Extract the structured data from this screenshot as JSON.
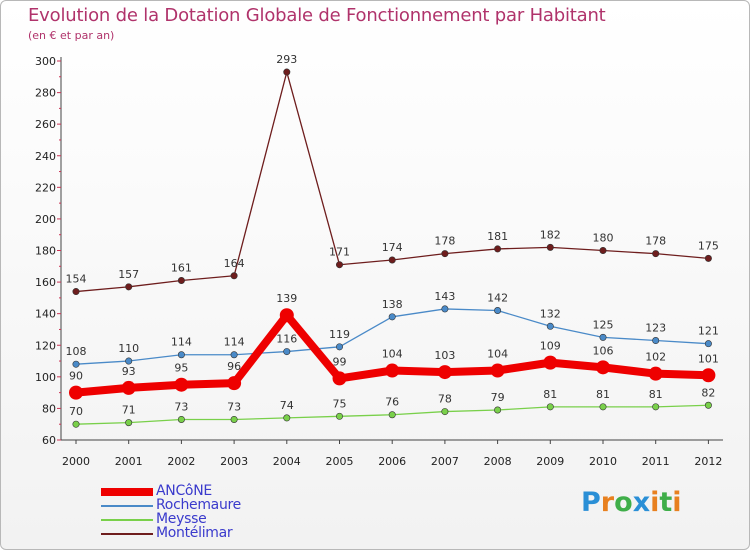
{
  "title": "Evolution de la Dotation Globale de Fonctionnement par Habitant",
  "subtitle": "(en € et par an)",
  "logo": {
    "text": "Proxiti",
    "letters": [
      "P",
      "r",
      "o",
      "x",
      "i",
      "t",
      "i"
    ],
    "colors": [
      "#2a8fd6",
      "#e8801f",
      "#3fae49",
      "#2a8fd6",
      "#e8801f",
      "#3fae49",
      "#e8801f"
    ]
  },
  "chart_data": {
    "type": "line",
    "title": "Evolution de la Dotation Globale de Fonctionnement par Habitant",
    "subtitle": "(en € et par an)",
    "xlabel": "",
    "ylabel": "",
    "ylim": [
      60,
      300
    ],
    "yticks": [
      60,
      80,
      100,
      120,
      140,
      160,
      180,
      200,
      220,
      240,
      260,
      280,
      300
    ],
    "x": [
      "2000",
      "2001",
      "2002",
      "2003",
      "2004",
      "2005",
      "2006",
      "2007",
      "2008",
      "2009",
      "2010",
      "2011",
      "2012"
    ],
    "legend_position": "bottom-left",
    "series": [
      {
        "name": "ANCôNE",
        "color": "#ee0000",
        "emphasis": true,
        "values": [
          90,
          93,
          95,
          96,
          139,
          99,
          104,
          103,
          104,
          109,
          106,
          102,
          101
        ]
      },
      {
        "name": "Rochemaure",
        "color": "#4a8ac8",
        "emphasis": false,
        "values": [
          108,
          110,
          114,
          114,
          116,
          119,
          138,
          143,
          142,
          132,
          125,
          123,
          121
        ]
      },
      {
        "name": "Meysse",
        "color": "#79d04a",
        "emphasis": false,
        "values": [
          70,
          71,
          73,
          73,
          74,
          75,
          76,
          78,
          79,
          81,
          81,
          81,
          82
        ]
      },
      {
        "name": "Montélimar",
        "color": "#6e1d1d",
        "emphasis": false,
        "values": [
          154,
          157,
          161,
          164,
          293,
          171,
          174,
          178,
          181,
          182,
          180,
          178,
          175
        ]
      }
    ]
  }
}
